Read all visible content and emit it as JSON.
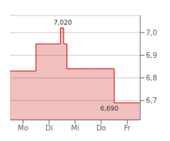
{
  "chart_data": {
    "type": "area",
    "x": [
      0.0,
      0.8,
      0.8,
      1.55,
      1.55,
      1.65,
      1.65,
      1.75,
      1.75,
      2.4,
      2.4,
      3.2,
      3.2,
      4.0
    ],
    "values": [
      6.83,
      6.83,
      6.95,
      6.95,
      7.02,
      7.02,
      6.95,
      6.95,
      6.84,
      6.84,
      6.84,
      6.84,
      6.69,
      6.69
    ],
    "color": "#cc0000",
    "xlim": [
      0.0,
      4.0
    ],
    "xticks": [
      {
        "value": 0.4,
        "label": "Mo"
      },
      {
        "value": 1.2,
        "label": "Di"
      },
      {
        "value": 2.0,
        "label": "Mi"
      },
      {
        "value": 2.8,
        "label": "Do"
      },
      {
        "value": 3.6,
        "label": "Fr"
      }
    ],
    "ylim": [
      6.615,
      7.075
    ],
    "yticks": [
      {
        "value": 6.7,
        "label": "6,7"
      },
      {
        "value": 6.8,
        "label": "6,8"
      },
      {
        "value": 6.9,
        "label": "6,9"
      },
      {
        "value": 7.0,
        "label": "7,0"
      }
    ],
    "grid": true,
    "annotations": [
      {
        "text": "7,020",
        "x": 1.62,
        "y": 7.02,
        "position": "top"
      },
      {
        "text": "6,690",
        "x": 3.05,
        "y": 6.69,
        "position": "bottom"
      }
    ]
  }
}
